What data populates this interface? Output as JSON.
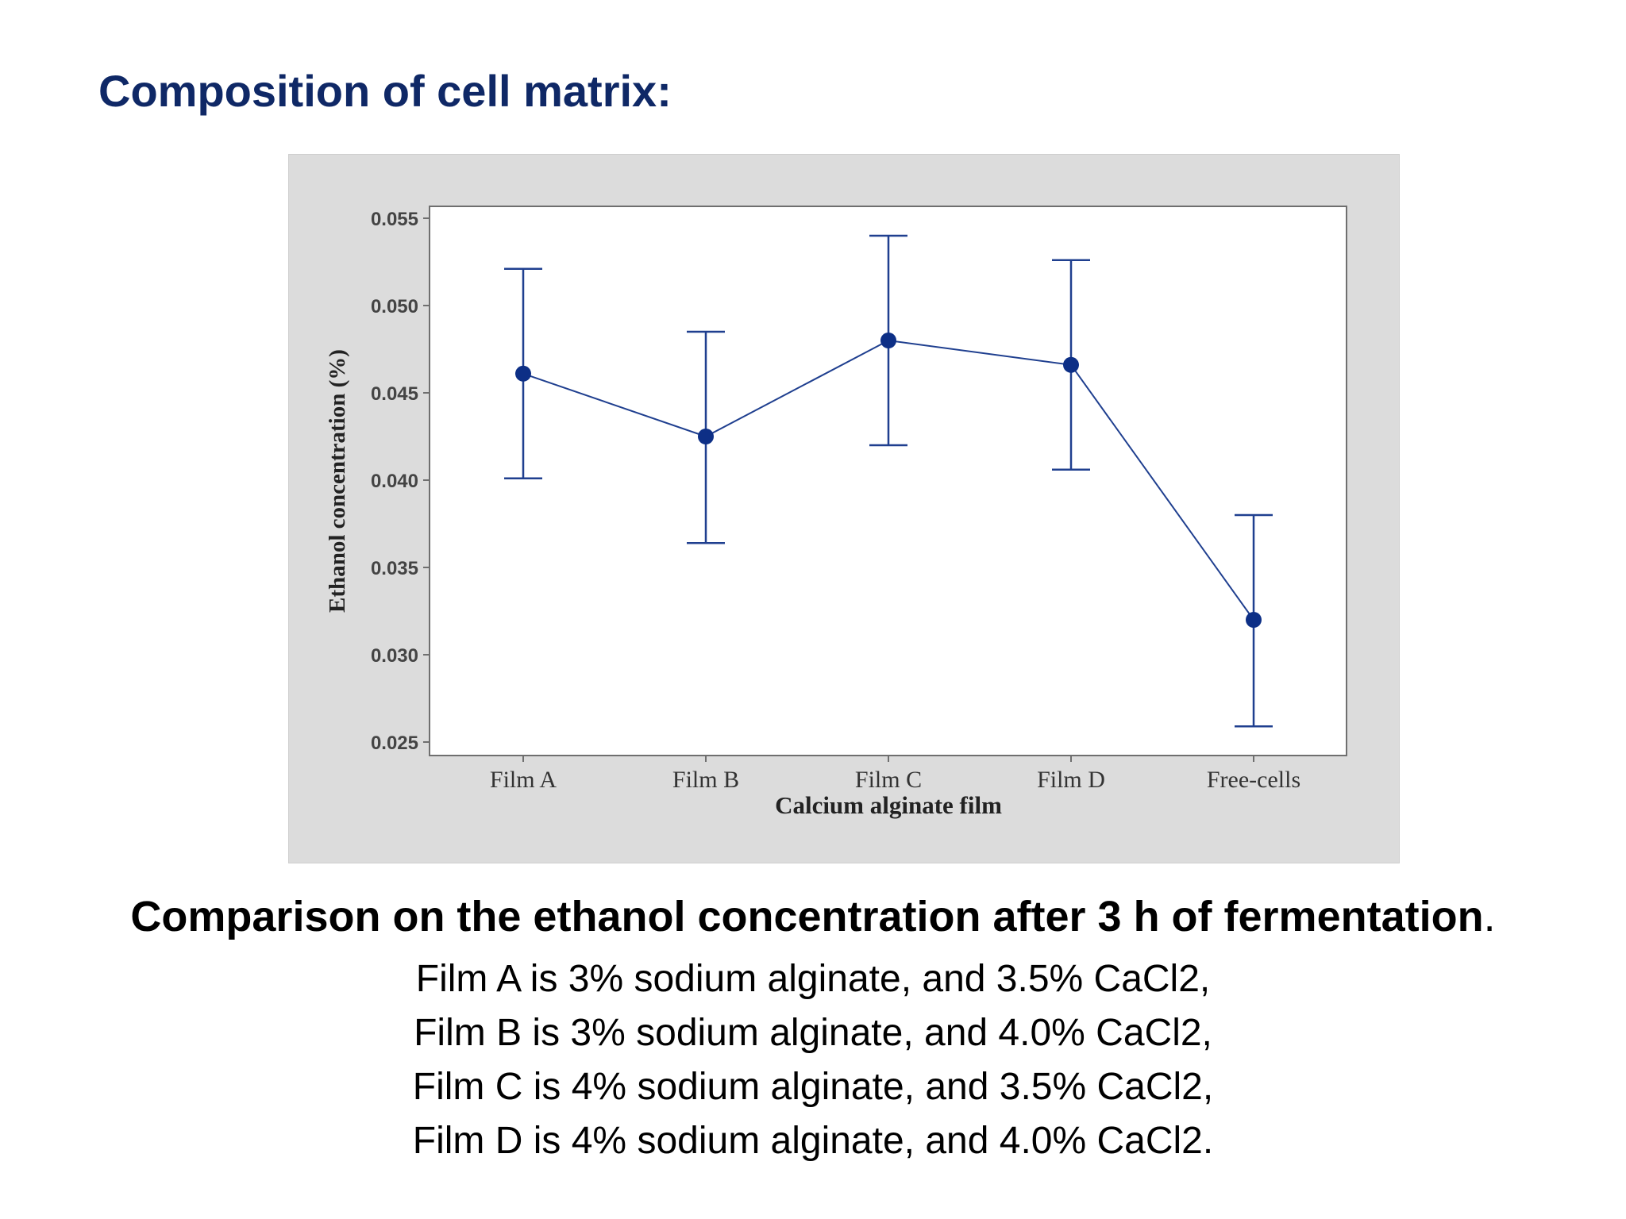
{
  "slide": {
    "title": "Composition of cell matrix:",
    "caption_heading": "Comparison on the ethanol concentration after 3 h of fermentation",
    "caption_heading_period": ".",
    "caption_lines": [
      "Film A is 3% sodium alginate, and 3.5% CaCl2,",
      "Film B is 3% sodium alginate, and 4.0% CaCl2,",
      "Film C is 4% sodium alginate, and 3.5% CaCl2,",
      "Film D is 4% sodium alginate, and 4.0% CaCl2."
    ]
  },
  "colors": {
    "title": "#0f2866",
    "series": "#1f3f8f",
    "frame": "#dcdcdc"
  },
  "chart_data": {
    "type": "line",
    "title": "",
    "xlabel": "Calcium alginate film",
    "ylabel": "Ethanol concentration (%)",
    "categories": [
      "Film A",
      "Film B",
      "Film C",
      "Film D",
      "Free-cells"
    ],
    "series": [
      {
        "values": [
          0.0461,
          0.0425,
          0.048,
          0.0466,
          0.032
        ],
        "err_low": [
          0.0401,
          0.0364,
          0.042,
          0.0406,
          0.0259
        ],
        "err_high": [
          0.0521,
          0.0485,
          0.054,
          0.0526,
          0.038
        ]
      }
    ],
    "ylim": [
      0.025,
      0.055
    ],
    "yticks": [
      "0.025",
      "0.030",
      "0.035",
      "0.040",
      "0.045",
      "0.050",
      "0.055"
    ],
    "error_bars": true,
    "grid": false,
    "legend": "none"
  }
}
